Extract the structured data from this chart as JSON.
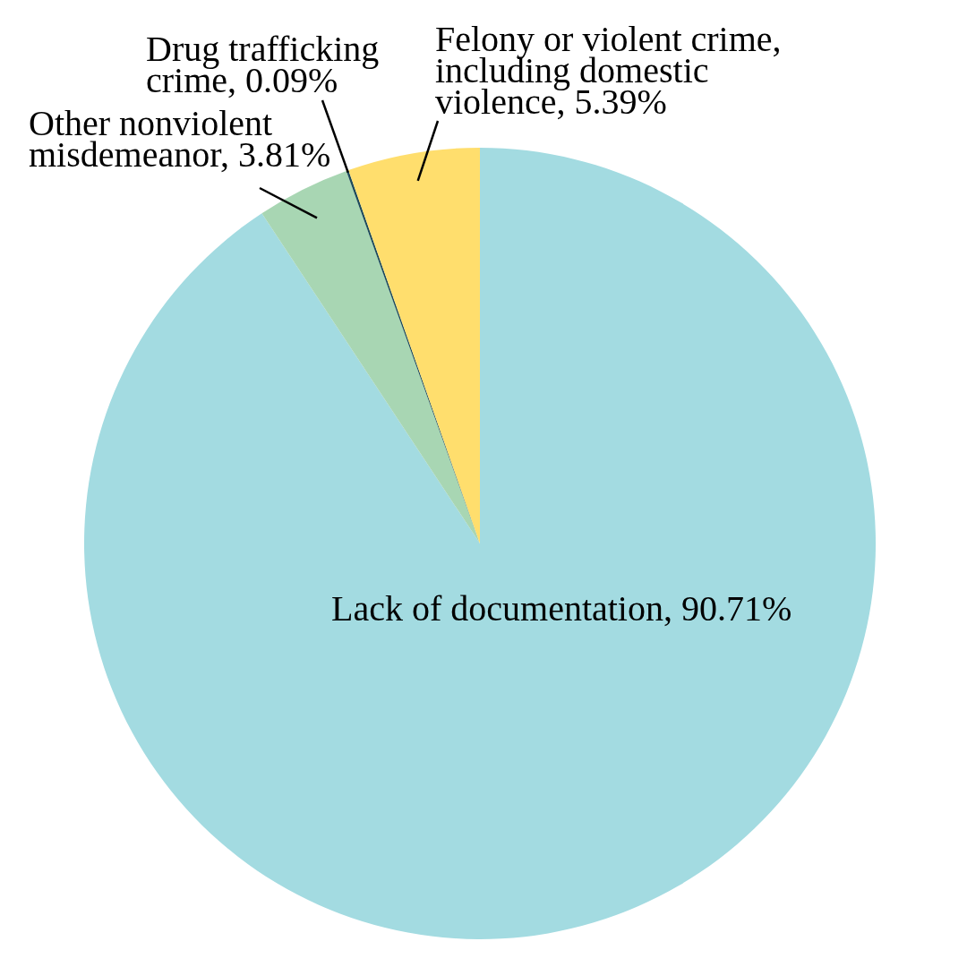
{
  "chart_data": {
    "type": "pie",
    "categories": [
      "Lack of documentation",
      "Other nonviolent misdemeanor",
      "Drug trafficking crime",
      "Felony or violent crime, including domestic violence"
    ],
    "values": [
      90.71,
      3.81,
      0.09,
      5.39
    ],
    "colors": [
      "#a3dbe1",
      "#a8d6b3",
      "#1d4a5a",
      "#ffde6d"
    ],
    "value_labels": [
      "90.71%",
      "3.81%",
      "0.09%",
      "5.39%"
    ]
  }
}
